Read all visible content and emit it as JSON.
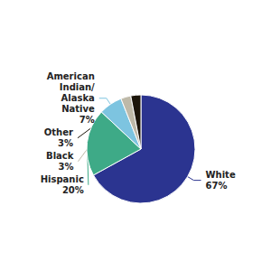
{
  "chart_data": {
    "type": "pie",
    "values": [
      67,
      20,
      7,
      3,
      3
    ],
    "value_labels": [
      "White\n67%",
      "Hispanic\n20%",
      "American\nIndian/\nAlaska\nNative\n7%",
      "Black\n3%",
      "Other\n3%"
    ],
    "colors": [
      "#2B3490",
      "#3EAA87",
      "#7DC4E0",
      "#BEB9A8",
      "#1C150A"
    ],
    "data_labels": true
  }
}
